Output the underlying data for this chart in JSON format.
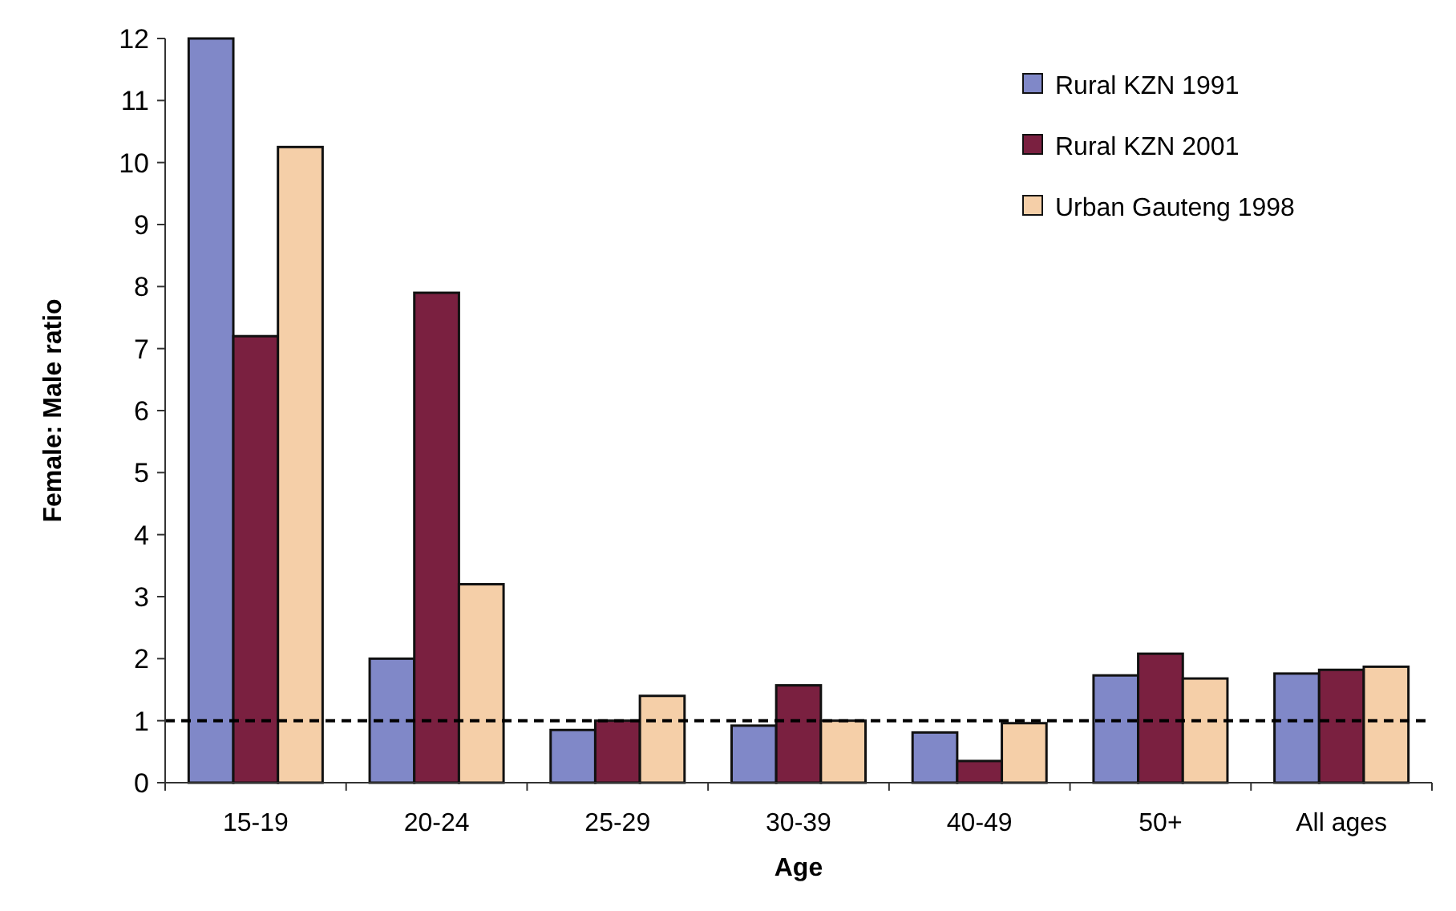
{
  "chart_data": {
    "type": "bar",
    "xlabel": "Age",
    "ylabel": "Female: Male ratio",
    "categories": [
      "15-19",
      "20-24",
      "25-29",
      "30-39",
      "40-49",
      "50+",
      "All ages"
    ],
    "series": [
      {
        "name": "Rural KZN 1991",
        "color": "#8088c8",
        "values": [
          12,
          2.0,
          0.85,
          0.92,
          0.81,
          1.73,
          1.76
        ]
      },
      {
        "name": "Rural KZN 2001",
        "color": "#7a2040",
        "values": [
          7.2,
          7.9,
          1.0,
          1.57,
          0.35,
          2.08,
          1.82
        ]
      },
      {
        "name": "Urban Gauteng 1998",
        "color": "#f5cfa8",
        "values": [
          10.25,
          3.2,
          1.4,
          1.0,
          0.96,
          1.68,
          1.87
        ]
      }
    ],
    "ylim": [
      0,
      12
    ],
    "yticks": [
      0,
      1,
      2,
      3,
      4,
      5,
      6,
      7,
      8,
      9,
      10,
      11,
      12
    ],
    "ref_lines": [
      {
        "axis": "y",
        "value": 1,
        "line_style": "dashed",
        "color": "#000000"
      }
    ],
    "grid": false,
    "legend": "top right"
  }
}
